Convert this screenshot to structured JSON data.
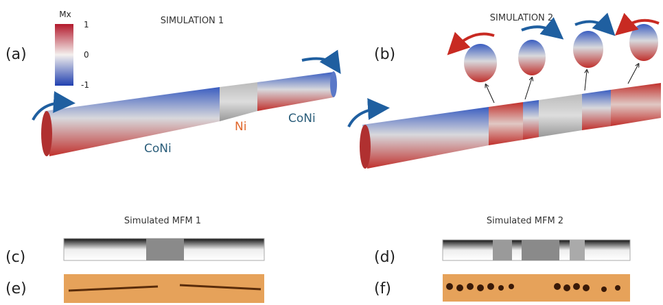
{
  "panels": {
    "a": {
      "label": "(a)",
      "title": "SIMULATION 1",
      "colorbar": {
        "title": "Mx",
        "ticks": [
          1,
          0,
          -1
        ]
      },
      "segments": [
        "CoNi",
        "Ni",
        "CoNi"
      ]
    },
    "b": {
      "label": "(b)",
      "title": "SIMULATION 2"
    },
    "c": {
      "label": "(c)",
      "title": "Simulated MFM 1"
    },
    "d": {
      "label": "(d)",
      "title": "Simulated MFM 2"
    },
    "e": {
      "label": "(e)"
    },
    "f": {
      "label": "(f)"
    }
  }
}
